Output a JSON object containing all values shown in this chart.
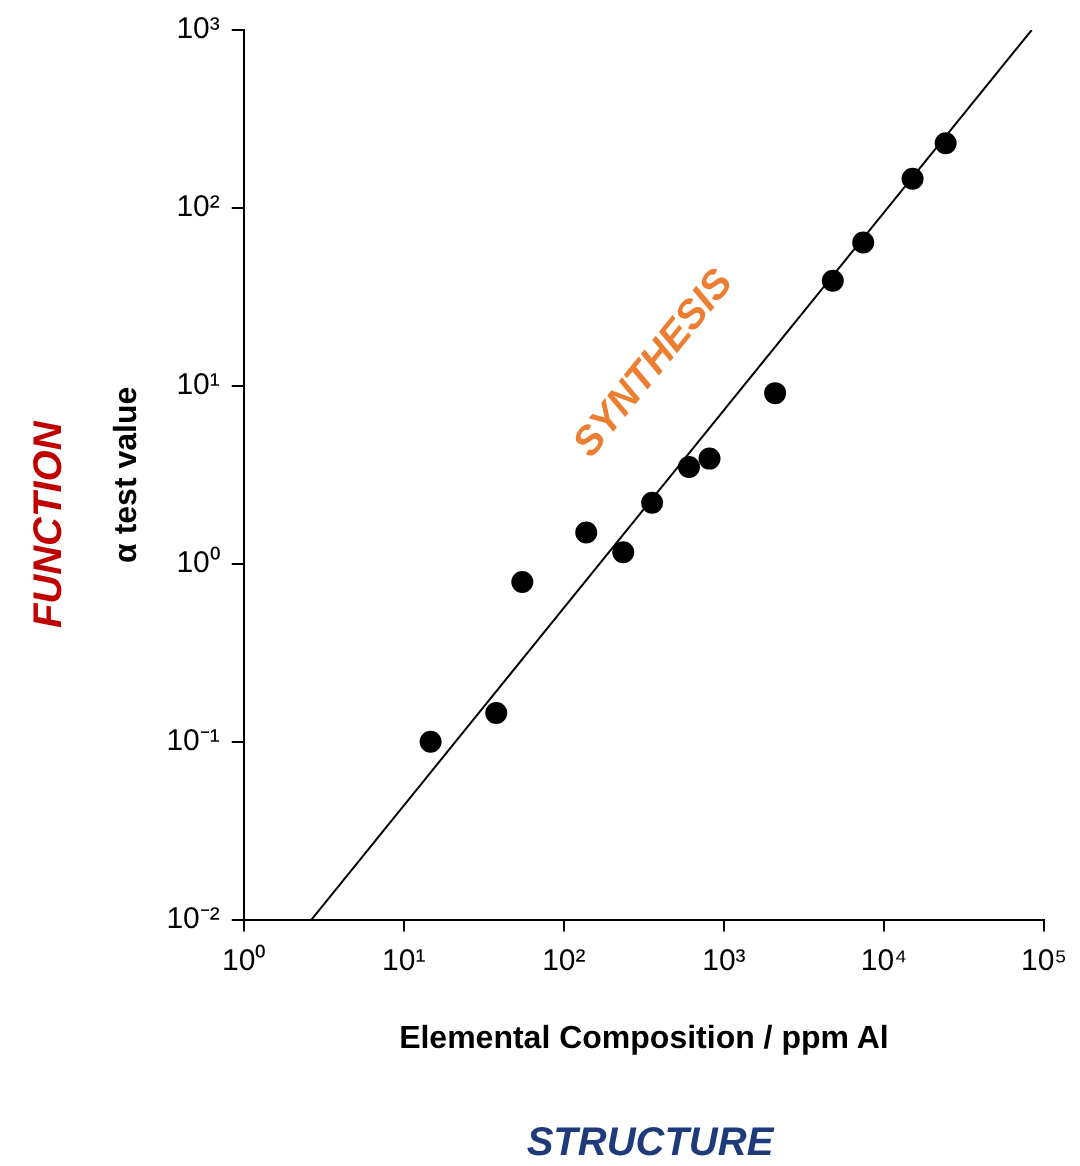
{
  "chart_data": {
    "type": "scatter",
    "xlabel": "Elemental Composition / ppm Al",
    "ylabel": "α test value",
    "x": [
      14.7,
      37.8,
      55,
      138,
      235,
      356,
      605,
      813,
      2090,
      4790,
      7420,
      15100,
      24300
    ],
    "series": [
      {
        "type": "scatter",
        "color": "#000000",
        "values": [
          0.1,
          0.145,
          0.79,
          1.5,
          1.16,
          2.2,
          3.5,
          3.9,
          9.1,
          39,
          64,
          146,
          231
        ]
      },
      {
        "type": "line",
        "color": "#000000",
        "marker": "none",
        "x": [
          2.65,
          83800
        ],
        "values": [
          0.01,
          1000
        ]
      }
    ],
    "log": "xy",
    "xlim": [
      1,
      100000
    ],
    "ylim": [
      0.01,
      1000
    ],
    "xticks": [
      {
        "value": 1,
        "label": "10⁰"
      },
      {
        "value": 10,
        "label": "10¹"
      },
      {
        "value": 100,
        "label": "10²"
      },
      {
        "value": 1000,
        "label": "10³"
      },
      {
        "value": 10000,
        "label": "10⁴"
      },
      {
        "value": 100000,
        "label": "10⁵"
      }
    ],
    "yticks": [
      {
        "value": 0.01,
        "label": "10⁻²"
      },
      {
        "value": 0.1,
        "label": "10⁻¹"
      },
      {
        "value": 1,
        "label": "10⁰"
      },
      {
        "value": 10,
        "label": "10¹"
      },
      {
        "value": 100,
        "label": "10²"
      },
      {
        "value": 1000,
        "label": "10³"
      }
    ],
    "grid": false,
    "legend": false,
    "marker": "circle",
    "annotations": [
      "FUNCTION",
      "STRUCTURE",
      "SYNTHESIS"
    ]
  }
}
